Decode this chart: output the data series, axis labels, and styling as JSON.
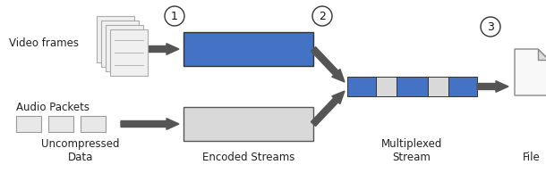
{
  "bg_color": "#ffffff",
  "blue_color": "#4472C4",
  "light_gray": "#D9D9D9",
  "dark_gray": "#555555",
  "page_color": "#f0f0f0",
  "page_ec": "#aaaaaa",
  "labels": {
    "video_frames": "Video frames",
    "audio_packets": "Audio Packets",
    "uncompressed": "Uncompressed\nData",
    "encoded": "Encoded Streams",
    "multiplexed": "Multiplexed\nStream",
    "file": "File"
  },
  "step_numbers": [
    "1",
    "2",
    "3"
  ],
  "font_size": 8.5,
  "figw": 6.1,
  "figh": 1.94,
  "dpi": 100
}
